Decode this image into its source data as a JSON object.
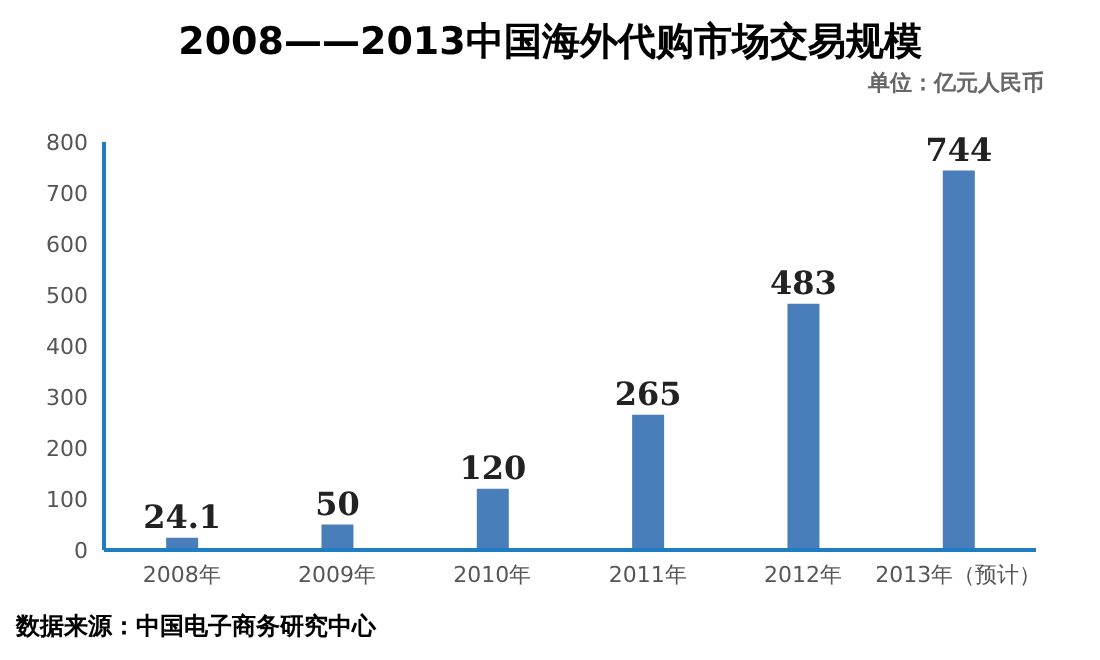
{
  "chart_data": {
    "type": "bar",
    "title": "2008——2013中国海外代购市场交易规模",
    "subtitle": "单位：亿元人民币",
    "categories": [
      "2008年",
      "2009年",
      "2010年",
      "2011年",
      "2012年",
      "2013年（预计）"
    ],
    "values": [
      24.1,
      50,
      120,
      265,
      483,
      744
    ],
    "color": "#4a7ebb",
    "ylim": [
      0,
      800
    ],
    "yticks": [
      0,
      100,
      200,
      300,
      400,
      500,
      600,
      700,
      800
    ],
    "grid": false,
    "data_labels": true,
    "annotations": [
      "数据来源：中国电子商务研究中心"
    ]
  }
}
